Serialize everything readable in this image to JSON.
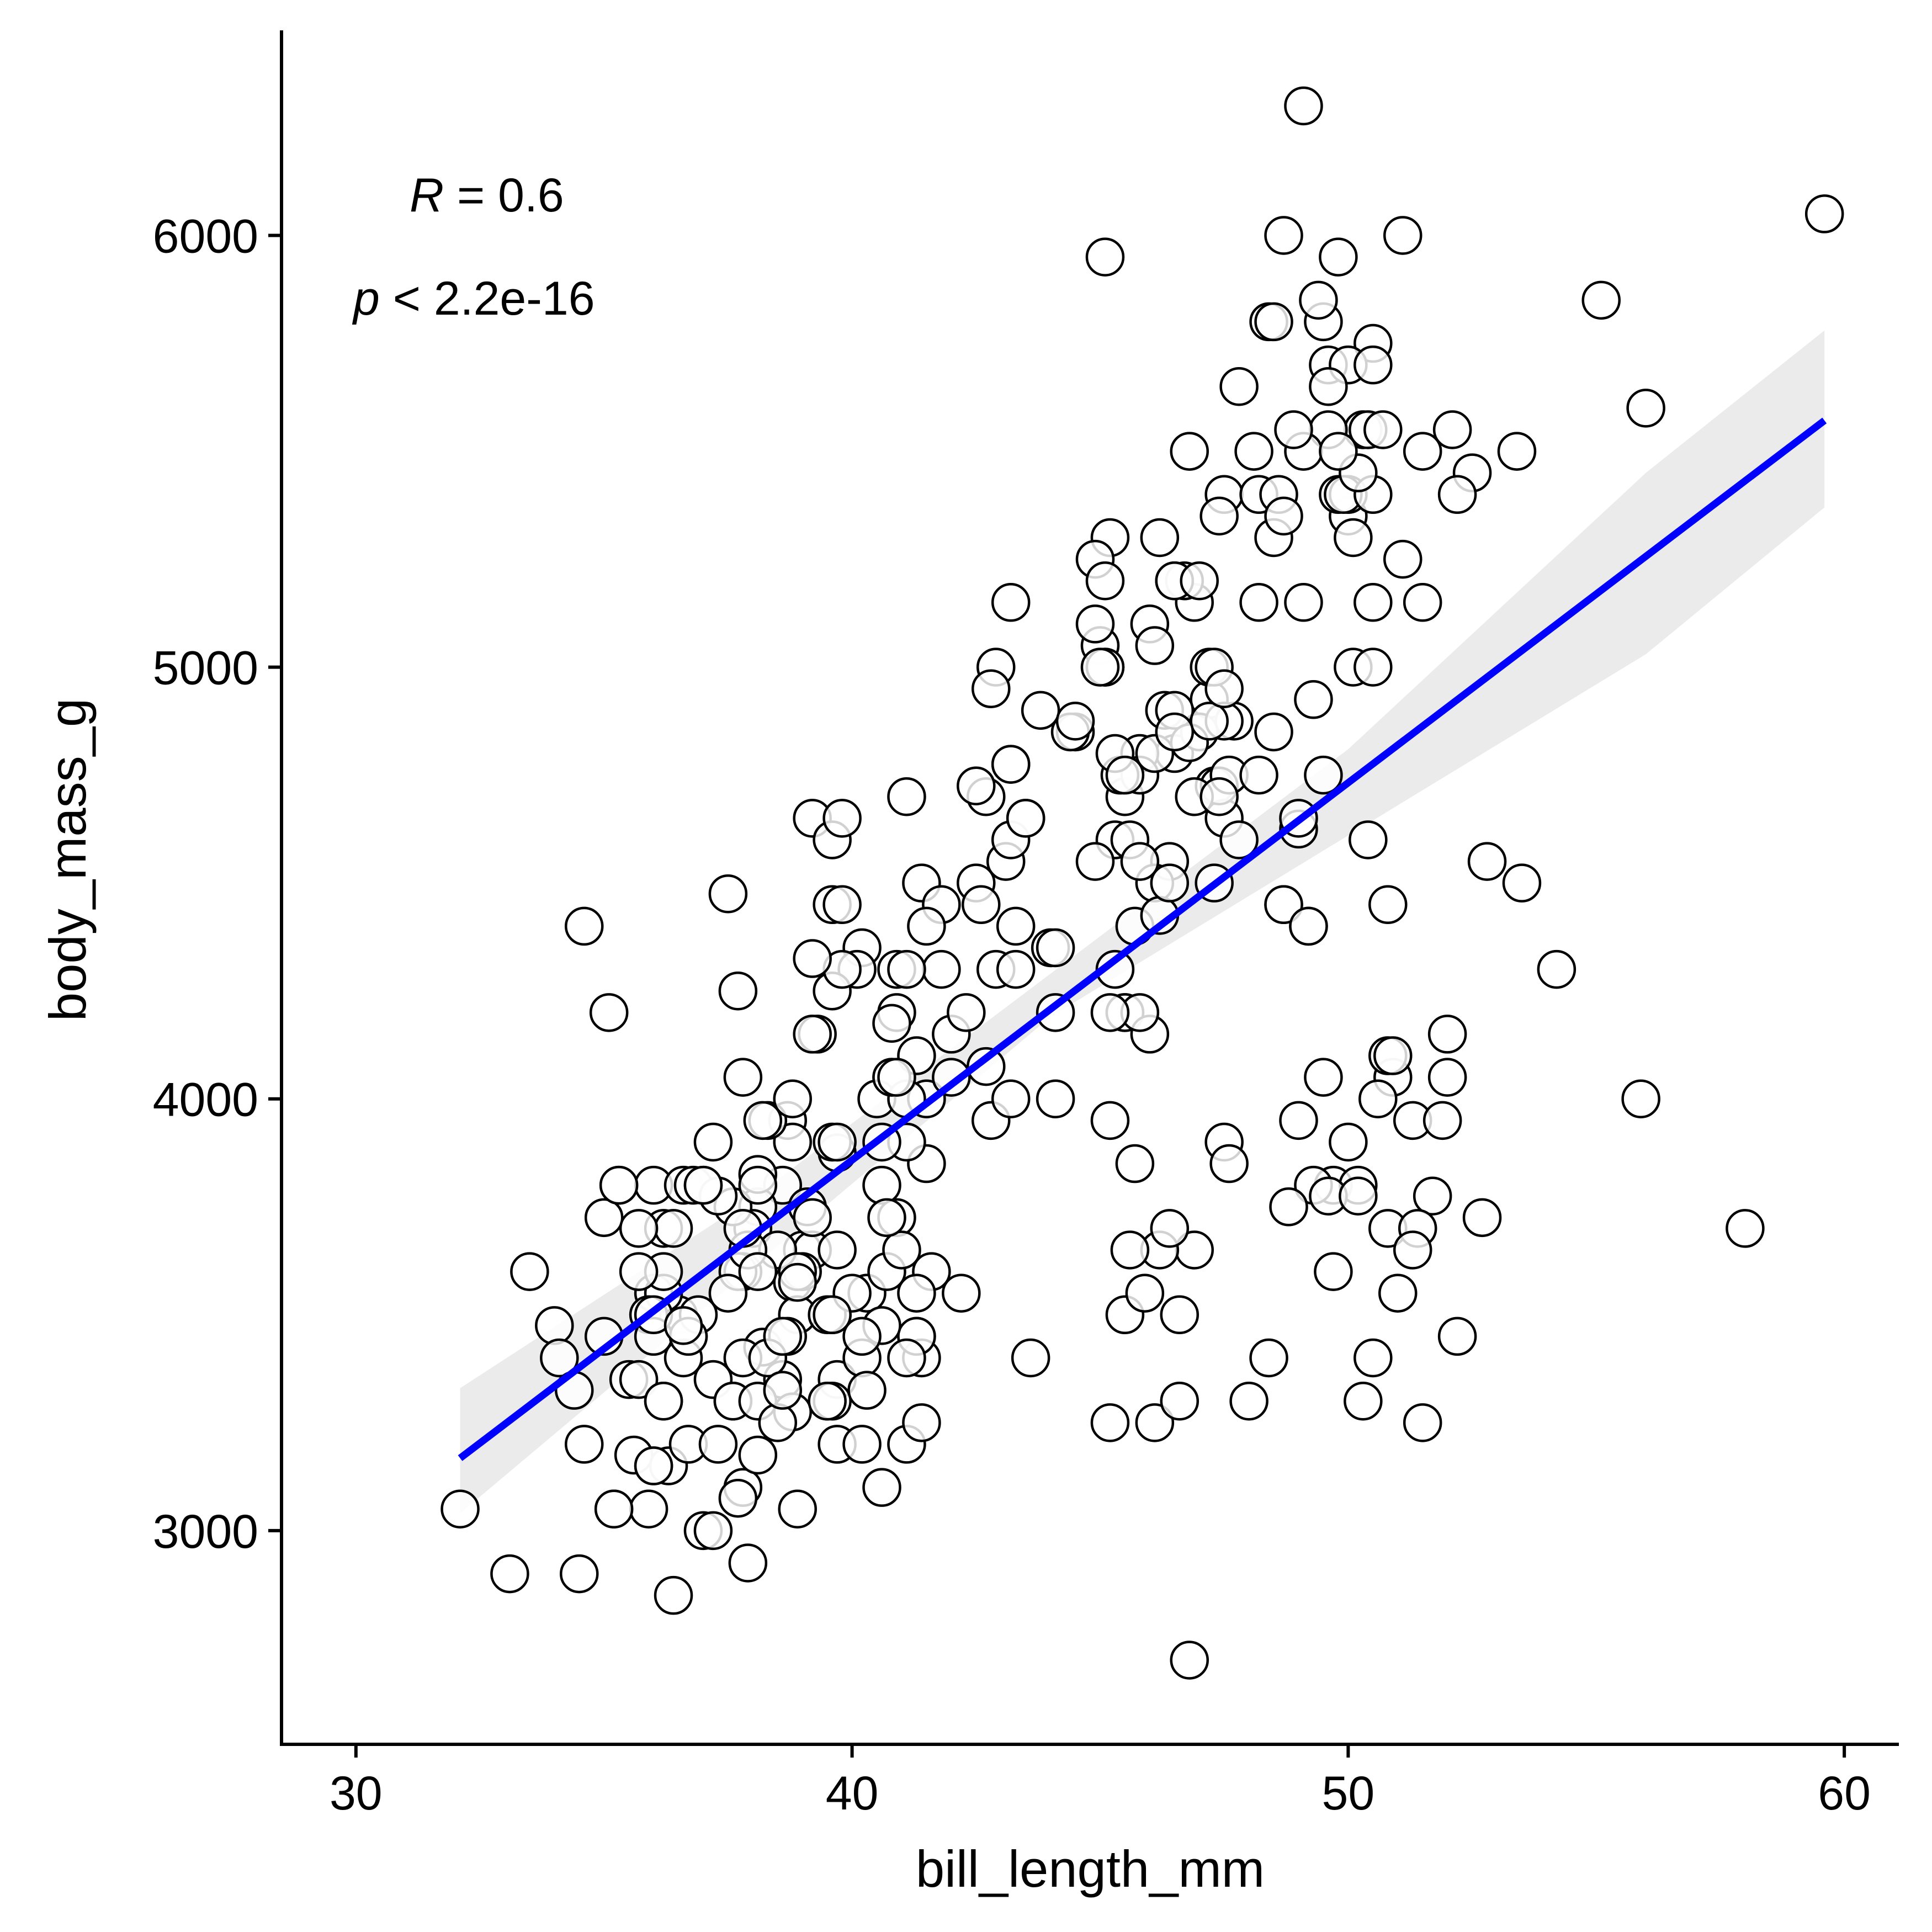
{
  "chart_data": {
    "type": "scatter",
    "title": "",
    "xlabel": "bill_length_mm",
    "ylabel": "body_mass_g",
    "xlim": [
      28.5,
      61.1
    ],
    "ylim": [
      2505,
      6475
    ],
    "x_ticks": [
      30,
      40,
      50,
      60
    ],
    "y_ticks": [
      3000,
      4000,
      5000,
      6000
    ],
    "x_tick_labels": [
      "30",
      "40",
      "50",
      "60"
    ],
    "y_tick_labels": [
      "3000",
      "4000",
      "5000",
      "6000"
    ],
    "grid": false,
    "annotation": {
      "r_var": "R",
      "r_text": " = 0.6",
      "p_var": "p",
      "p_text": " < 2.2e-16"
    },
    "regression": {
      "x_range": [
        32.1,
        59.6
      ],
      "intercept": 362.3,
      "slope": 87.4,
      "ci_lower": [
        [
          32.1,
          3040
        ],
        [
          38,
          3610
        ],
        [
          44,
          4190
        ],
        [
          50,
          4610
        ],
        [
          56,
          5030
        ],
        [
          59.6,
          5370
        ]
      ],
      "ci_upper": [
        [
          32.1,
          3330
        ],
        [
          38,
          3770
        ],
        [
          44,
          4290
        ],
        [
          50,
          4810
        ],
        [
          56,
          5450
        ],
        [
          59.6,
          5780
        ]
      ],
      "line_color": "#0000ff",
      "band_color": "#ebebeb"
    },
    "marker": {
      "fill": "#ffffff",
      "stroke": "#000000"
    },
    "points": [
      [
        32.1,
        3050
      ],
      [
        33.1,
        2900
      ],
      [
        33.5,
        3600
      ],
      [
        34.0,
        3475
      ],
      [
        34.1,
        3400
      ],
      [
        34.4,
        3325
      ],
      [
        34.5,
        2900
      ],
      [
        34.6,
        3200
      ],
      [
        34.6,
        4400
      ],
      [
        35.0,
        3450
      ],
      [
        35.0,
        3725
      ],
      [
        35.1,
        4200
      ],
      [
        35.2,
        3050
      ],
      [
        35.3,
        3800
      ],
      [
        35.5,
        3350
      ],
      [
        35.6,
        3175
      ],
      [
        35.7,
        3350
      ],
      [
        35.9,
        3050
      ],
      [
        36.0,
        3800
      ],
      [
        36.0,
        3550
      ],
      [
        36.2,
        3700
      ],
      [
        36.2,
        3300
      ],
      [
        36.3,
        3150
      ],
      [
        36.4,
        2850
      ],
      [
        36.5,
        3500
      ],
      [
        36.6,
        3800
      ],
      [
        36.7,
        3450
      ],
      [
        36.8,
        3800
      ],
      [
        37.0,
        3000
      ],
      [
        37.2,
        3350
      ],
      [
        37.3,
        3775
      ],
      [
        37.5,
        4475
      ],
      [
        37.6,
        3300
      ],
      [
        37.7,
        4250
      ],
      [
        37.8,
        3100
      ],
      [
        37.8,
        3600
      ],
      [
        37.9,
        2925
      ],
      [
        38.1,
        3175
      ],
      [
        38.2,
        3425
      ],
      [
        38.6,
        3800
      ],
      [
        38.7,
        3950
      ],
      [
        38.8,
        3575
      ],
      [
        38.9,
        3050
      ],
      [
        39.0,
        3650
      ],
      [
        39.1,
        3750
      ],
      [
        39.2,
        4650
      ],
      [
        39.3,
        4150
      ],
      [
        39.5,
        3300
      ],
      [
        39.6,
        4600
      ],
      [
        39.7,
        3200
      ],
      [
        39.8,
        4650
      ],
      [
        40.2,
        4350
      ],
      [
        40.6,
        3800
      ],
      [
        40.8,
        4050
      ],
      [
        41.1,
        4700
      ],
      [
        41.1,
        3200
      ],
      [
        41.3,
        3450
      ],
      [
        41.5,
        4000
      ],
      [
        42.0,
        4050
      ],
      [
        42.2,
        3550
      ],
      [
        42.5,
        4500
      ],
      [
        42.9,
        4300
      ],
      [
        43.2,
        4775
      ],
      [
        43.6,
        3400
      ],
      [
        43.8,
        4900
      ],
      [
        44.1,
        4000
      ],
      [
        44.5,
        4850
      ],
      [
        45.1,
        5950
      ],
      [
        45.2,
        3250
      ],
      [
        45.3,
        4300
      ],
      [
        45.5,
        4200
      ],
      [
        45.7,
        4400
      ],
      [
        46.1,
        3250
      ],
      [
        46.2,
        5300
      ],
      [
        46.5,
        4800
      ],
      [
        46.8,
        2700
      ],
      [
        46.9,
        5150
      ],
      [
        47.2,
        4925
      ],
      [
        47.5,
        5400
      ],
      [
        47.8,
        5650
      ],
      [
        48.1,
        5500
      ],
      [
        48.4,
        5800
      ],
      [
        48.7,
        4450
      ],
      [
        49.0,
        4625
      ],
      [
        49.1,
        6300
      ],
      [
        49.5,
        5800
      ],
      [
        49.8,
        5950
      ],
      [
        50.0,
        5350
      ],
      [
        50.3,
        5550
      ],
      [
        50.5,
        5750
      ],
      [
        50.8,
        4450
      ],
      [
        51.1,
        6000
      ],
      [
        51.5,
        5500
      ],
      [
        52.1,
        5550
      ],
      [
        52.7,
        3725
      ],
      [
        53.4,
        5500
      ],
      [
        54.2,
        4300
      ],
      [
        55.1,
        5850
      ],
      [
        55.9,
        4000
      ],
      [
        56.0,
        5600
      ],
      [
        58.0,
        3700
      ],
      [
        59.6,
        6050
      ],
      [
        44.4,
        4850
      ],
      [
        45.0,
        5050
      ],
      [
        45.5,
        4700
      ],
      [
        46.0,
        5100
      ],
      [
        46.4,
        4550
      ],
      [
        47.0,
        4850
      ],
      [
        45.3,
        4600
      ],
      [
        46.7,
        5200
      ],
      [
        44.9,
        5100
      ],
      [
        48.5,
        5300
      ],
      [
        50.9,
        4050
      ],
      [
        49.7,
        3800
      ],
      [
        51.3,
        3950
      ],
      [
        50.0,
        3900
      ],
      [
        49.3,
        3800
      ],
      [
        51.9,
        3950
      ],
      [
        50.5,
        3400
      ],
      [
        52.0,
        4050
      ],
      [
        48.0,
        3300
      ],
      [
        49.0,
        3950
      ],
      [
        46.9,
        3650
      ],
      [
        45.2,
        3950
      ],
      [
        46.2,
        3650
      ],
      [
        45.5,
        3500
      ],
      [
        46.4,
        3700
      ],
      [
        47.5,
        3900
      ],
      [
        49.5,
        4050
      ],
      [
        50.2,
        3800
      ],
      [
        51.0,
        3550
      ],
      [
        48.8,
        3750
      ],
      [
        45.6,
        3650
      ],
      [
        46.6,
        3500
      ],
      [
        50.8,
        3700
      ],
      [
        51.5,
        3250
      ],
      [
        52.2,
        3450
      ],
      [
        50.3,
        3300
      ],
      [
        48.4,
        3400
      ],
      [
        46.6,
        3300
      ],
      [
        45.9,
        3550
      ],
      [
        47.6,
        3850
      ],
      [
        40.5,
        4000
      ],
      [
        41.4,
        4500
      ],
      [
        42.0,
        4150
      ],
      [
        38.8,
        3900
      ],
      [
        39.7,
        3875
      ],
      [
        41.3,
        4100
      ],
      [
        37.2,
        3000
      ],
      [
        38.1,
        3750
      ],
      [
        36.2,
        3550
      ],
      [
        39.6,
        3500
      ],
      [
        40.3,
        3550
      ],
      [
        38.0,
        3700
      ],
      [
        41.6,
        3600
      ],
      [
        38.6,
        3350
      ],
      [
        39.2,
        3650
      ],
      [
        40.9,
        3725
      ],
      [
        41.5,
        3850
      ],
      [
        42.3,
        4200
      ],
      [
        40.1,
        4300
      ],
      [
        37.8,
        4050
      ],
      [
        36.7,
        3200
      ],
      [
        38.8,
        3275
      ],
      [
        39.0,
        3600
      ],
      [
        35.9,
        3500
      ],
      [
        37.6,
        3300
      ],
      [
        39.7,
        3350
      ],
      [
        36.9,
        3500
      ],
      [
        38.3,
        3950
      ],
      [
        41.4,
        3400
      ],
      [
        37.7,
        3600
      ],
      [
        38.2,
        3950
      ],
      [
        39.6,
        4450
      ],
      [
        40.7,
        3600
      ],
      [
        42.7,
        4075
      ],
      [
        39.6,
        4250
      ],
      [
        43.1,
        4550
      ],
      [
        41.3,
        3450
      ],
      [
        37.6,
        3750
      ],
      [
        39.8,
        4450
      ],
      [
        40.6,
        3100
      ],
      [
        41.0,
        3650
      ],
      [
        36.6,
        3400
      ],
      [
        42.7,
        4700
      ],
      [
        38.5,
        3650
      ],
      [
        37.3,
        3775
      ],
      [
        39.2,
        4150
      ],
      [
        39.8,
        4300
      ],
      [
        41.1,
        4000
      ],
      [
        42.8,
        3950
      ],
      [
        40.2,
        3200
      ],
      [
        40.2,
        3400
      ],
      [
        39.6,
        3300
      ],
      [
        37.9,
        3650
      ],
      [
        38.8,
        4000
      ],
      [
        38.9,
        3500
      ],
      [
        41.8,
        4450
      ],
      [
        43.2,
        4600
      ],
      [
        40.9,
        4200
      ],
      [
        42.5,
        4725
      ],
      [
        41.8,
        4300
      ],
      [
        39.5,
        3500
      ],
      [
        43.3,
        4400
      ],
      [
        41.1,
        3900
      ],
      [
        44.1,
        4200
      ],
      [
        40.8,
        4175
      ],
      [
        43.2,
        4000
      ],
      [
        45.6,
        4600
      ],
      [
        49.2,
        4400
      ],
      [
        48.7,
        4450
      ],
      [
        50.4,
        4600
      ],
      [
        45.1,
        5000
      ],
      [
        46.3,
        4900
      ],
      [
        44.5,
        4875
      ],
      [
        47.3,
        4725
      ],
      [
        50.1,
        5000
      ],
      [
        47.7,
        4875
      ],
      [
        46.5,
        4900
      ],
      [
        45.8,
        4800
      ],
      [
        49.6,
        5700
      ],
      [
        47.5,
        4875
      ],
      [
        48.5,
        5800
      ],
      [
        49.6,
        5550
      ],
      [
        50.4,
        5550
      ],
      [
        45.2,
        5300
      ],
      [
        49.1,
        5500
      ],
      [
        50.7,
        5550
      ],
      [
        46.8,
        5500
      ],
      [
        49.4,
        5850
      ],
      [
        44.9,
        5250
      ],
      [
        50.5,
        5000
      ],
      [
        48.2,
        5400
      ],
      [
        47.2,
        5000
      ],
      [
        47.3,
        5000
      ],
      [
        46.1,
        5050
      ],
      [
        50.0,
        5700
      ],
      [
        48.7,
        6000
      ],
      [
        50.1,
        5300
      ],
      [
        46.5,
        5200
      ],
      [
        45.8,
        4750
      ],
      [
        49.8,
        5400
      ],
      [
        51.1,
        5250
      ],
      [
        51.5,
        5150
      ],
      [
        47.5,
        4650
      ],
      [
        48.6,
        5400
      ],
      [
        50.0,
        5400
      ],
      [
        47.8,
        4600
      ],
      [
        49.1,
        5150
      ],
      [
        47.4,
        4725
      ],
      [
        49.9,
        5400
      ],
      [
        50.5,
        5400
      ],
      [
        52.5,
        5450
      ],
      [
        45.4,
        4750
      ],
      [
        51.7,
        3775
      ],
      [
        49.7,
        3600
      ],
      [
        52.0,
        4150
      ],
      [
        51.4,
        3700
      ],
      [
        51.3,
        3650
      ],
      [
        52.8,
        4550
      ],
      [
        53.5,
        4500
      ],
      [
        50.8,
        4100
      ],
      [
        50.6,
        4000
      ],
      [
        49.6,
        3775
      ],
      [
        48.5,
        4850
      ],
      [
        47.6,
        4750
      ],
      [
        49.2,
        4400
      ],
      [
        50.9,
        4100
      ],
      [
        52.2,
        5400
      ],
      [
        50.2,
        3775
      ],
      [
        45.7,
        3850
      ],
      [
        47.3,
        4500
      ],
      [
        49.3,
        4925
      ],
      [
        46.1,
        4500
      ],
      [
        48.9,
        5550
      ],
      [
        45.3,
        4800
      ],
      [
        42.6,
        4450
      ],
      [
        43.5,
        4650
      ],
      [
        45.1,
        5000
      ],
      [
        46.8,
        4825
      ],
      [
        46.2,
        4425
      ],
      [
        47.2,
        4875
      ],
      [
        45.5,
        4200
      ],
      [
        46.0,
        4150
      ],
      [
        44.0,
        4350
      ],
      [
        45.8,
        4200
      ],
      [
        46.4,
        4500
      ],
      [
        45.2,
        4200
      ],
      [
        43.3,
        4300
      ],
      [
        42.9,
        5000
      ],
      [
        43.5,
        4650
      ],
      [
        42.8,
        4950
      ],
      [
        44.9,
        4550
      ],
      [
        46.1,
        4800
      ],
      [
        49.5,
        4750
      ],
      [
        47.5,
        4950
      ],
      [
        46.5,
        4850
      ],
      [
        40.9,
        4300
      ],
      [
        41.5,
        4400
      ],
      [
        39.6,
        3900
      ],
      [
        40.7,
        3725
      ],
      [
        39.2,
        4325
      ],
      [
        38.7,
        3450
      ],
      [
        38.1,
        3300
      ],
      [
        37.0,
        3800
      ],
      [
        36.0,
        3450
      ],
      [
        36.0,
        3150
      ],
      [
        38.1,
        3825
      ],
      [
        37.7,
        3075
      ],
      [
        40.6,
        3475
      ],
      [
        36.0,
        3500
      ],
      [
        40.3,
        3325
      ],
      [
        39.7,
        3900
      ],
      [
        36.4,
        3700
      ],
      [
        35.3,
        3800
      ],
      [
        37.8,
        3400
      ],
      [
        36.2,
        3300
      ],
      [
        40.0,
        3550
      ],
      [
        38.3,
        3400
      ],
      [
        38.5,
        3250
      ],
      [
        37.2,
        3900
      ],
      [
        39.6,
        3500
      ],
      [
        35.7,
        3700
      ],
      [
        41.3,
        3550
      ],
      [
        37.3,
        3200
      ],
      [
        39.7,
        3650
      ],
      [
        36.7,
        3450
      ],
      [
        41.4,
        3250
      ],
      [
        39.2,
        3725
      ],
      [
        35.2,
        3050
      ],
      [
        38.9,
        3600
      ],
      [
        36.0,
        3150
      ],
      [
        37.0,
        3800
      ],
      [
        39.5,
        3300
      ],
      [
        38.6,
        3325
      ],
      [
        38.1,
        3600
      ],
      [
        41.1,
        3400
      ],
      [
        36.6,
        3475
      ],
      [
        36.2,
        3600
      ],
      [
        40.2,
        3450
      ],
      [
        35.7,
        3600
      ],
      [
        37.8,
        3700
      ],
      [
        38.9,
        3575
      ],
      [
        41.1,
        4300
      ],
      [
        40.6,
        3900
      ],
      [
        40.8,
        4050
      ],
      [
        40.9,
        4050
      ],
      [
        38.1,
        3800
      ],
      [
        43.2,
        4775
      ],
      [
        38.6,
        3450
      ],
      [
        37.5,
        3550
      ],
      [
        45.8,
        4550
      ],
      [
        44.1,
        4350
      ],
      [
        46.9,
        4700
      ],
      [
        45.5,
        4750
      ],
      [
        48.2,
        5150
      ],
      [
        46.5,
        5200
      ],
      [
        47.4,
        5350
      ],
      [
        49.6,
        5650
      ],
      [
        50.2,
        5450
      ],
      [
        45.0,
        5000
      ],
      [
        48.7,
        5350
      ],
      [
        43.2,
        5150
      ],
      [
        47.0,
        5200
      ],
      [
        49.0,
        4650
      ],
      [
        50.5,
        5150
      ],
      [
        45.1,
        5200
      ],
      [
        47.4,
        4700
      ],
      [
        50.5,
        5700
      ],
      [
        49.8,
        5500
      ],
      [
        48.2,
        4750
      ]
    ]
  }
}
